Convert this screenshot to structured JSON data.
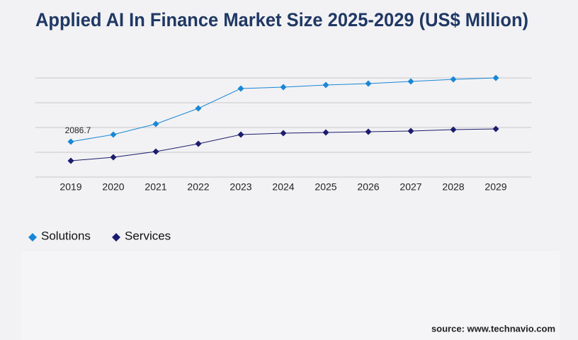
{
  "chart_data": {
    "type": "line",
    "title": "Applied AI In Finance Market Size 2025-2029 (US$ Million)",
    "categories": [
      "2019",
      "2020",
      "2021",
      "2022",
      "2023",
      "2024",
      "2025",
      "2026",
      "2027",
      "2028",
      "2029"
    ],
    "series": [
      {
        "name": "Solutions",
        "color": "#1a87d6",
        "values": [
          2086.7,
          2503,
          3128,
          4046,
          5214,
          5297,
          5422,
          5506,
          5631,
          5756,
          5840
        ],
        "value_labels": [
          "2086.7",
          null,
          null,
          null,
          null,
          null,
          null,
          null,
          null,
          null,
          null
        ]
      },
      {
        "name": "Services",
        "color": "#1c1c6e",
        "values": [
          959,
          1168,
          1502,
          1960,
          2503,
          2586,
          2628,
          2669,
          2711,
          2794,
          2836
        ]
      }
    ],
    "ylim": [
      0,
      5840
    ],
    "grid": true,
    "legend": "bottom-left",
    "source": "source: www.technavio.com"
  }
}
